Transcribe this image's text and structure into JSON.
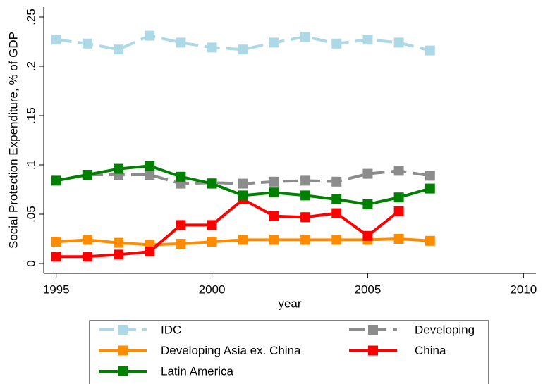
{
  "chart_data": {
    "type": "line",
    "x_label": "year",
    "y_label": "Social Protection Expenditure, % of GDP",
    "x": [
      1995,
      1996,
      1997,
      1998,
      1999,
      2000,
      2001,
      2002,
      2003,
      2004,
      2005,
      2006,
      2007
    ],
    "xlim": [
      1994.6,
      2010.4
    ],
    "xticks": [
      1995,
      2000,
      2005,
      2010
    ],
    "ylim": [
      -0.01,
      0.26
    ],
    "yticks": [
      0,
      {
        "value": 0.05,
        "label": ".05"
      },
      {
        "value": 0.1,
        "label": ".1"
      },
      {
        "value": 0.15,
        "label": ".15"
      },
      {
        "value": 0.2,
        "label": ".2"
      },
      {
        "value": 0.25,
        "label": ".25"
      }
    ],
    "series": [
      {
        "name": "IDC",
        "color": "#add8e6",
        "dashed": true,
        "values": [
          0.227,
          0.223,
          0.217,
          0.231,
          0.224,
          0.219,
          0.217,
          0.224,
          0.23,
          0.223,
          0.227,
          0.224,
          0.216
        ]
      },
      {
        "name": "Developing",
        "color": "#8c8c8c",
        "dashed": true,
        "values": [
          null,
          0.09,
          0.09,
          0.09,
          0.081,
          0.082,
          0.081,
          0.083,
          0.084,
          0.083,
          0.091,
          0.094,
          0.089
        ]
      },
      {
        "name": "Developing Asia ex. China",
        "color": "#ff8c00",
        "dashed": false,
        "values": [
          0.022,
          0.024,
          0.021,
          0.019,
          0.02,
          0.022,
          0.024,
          0.024,
          0.024,
          0.024,
          0.024,
          0.025,
          0.023
        ]
      },
      {
        "name": "China",
        "color": "#ff0000",
        "dashed": false,
        "values": [
          0.007,
          0.007,
          0.009,
          0.012,
          0.039,
          0.039,
          0.065,
          0.048,
          0.047,
          0.051,
          0.028,
          0.053,
          null
        ]
      },
      {
        "name": "Latin America",
        "color": "#008000",
        "dashed": false,
        "values": [
          0.084,
          0.09,
          0.096,
          0.099,
          0.088,
          0.081,
          0.069,
          0.072,
          0.069,
          0.065,
          0.06,
          0.067,
          0.076
        ]
      }
    ]
  }
}
